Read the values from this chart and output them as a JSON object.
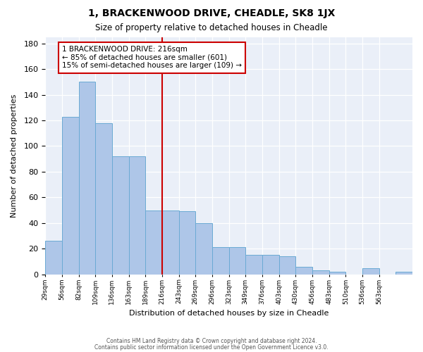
{
  "title": "1, BRACKENWOOD DRIVE, CHEADLE, SK8 1JX",
  "subtitle": "Size of property relative to detached houses in Cheadle",
  "xlabel": "Distribution of detached houses by size in Cheadle",
  "ylabel": "Number of detached properties",
  "bar_values": [
    26,
    123,
    150,
    118,
    92,
    92,
    50,
    50,
    49,
    40,
    21,
    21,
    15,
    15,
    14,
    6,
    3,
    2,
    0,
    5,
    0,
    2
  ],
  "bin_labels": [
    "29sqm",
    "56sqm",
    "82sqm",
    "109sqm",
    "136sqm",
    "163sqm",
    "189sqm",
    "216sqm",
    "243sqm",
    "269sqm",
    "296sqm",
    "323sqm",
    "349sqm",
    "376sqm",
    "403sqm",
    "430sqm",
    "456sqm",
    "483sqm",
    "510sqm",
    "536sqm",
    "563sqm"
  ],
  "bar_color": "#aec6e8",
  "bar_edge_color": "#6aaad4",
  "vline_x": 7,
  "vline_color": "#cc0000",
  "annotation_text": "1 BRACKENWOOD DRIVE: 216sqm\n← 85% of detached houses are smaller (601)\n15% of semi-detached houses are larger (109) →",
  "annotation_box_color": "#cc0000",
  "background_color": "#eaeff8",
  "ylim": [
    0,
    185
  ],
  "yticks": [
    0,
    20,
    40,
    60,
    80,
    100,
    120,
    140,
    160,
    180
  ],
  "footer_line1": "Contains HM Land Registry data © Crown copyright and database right 2024.",
  "footer_line2": "Contains public sector information licensed under the Open Government Licence v3.0."
}
